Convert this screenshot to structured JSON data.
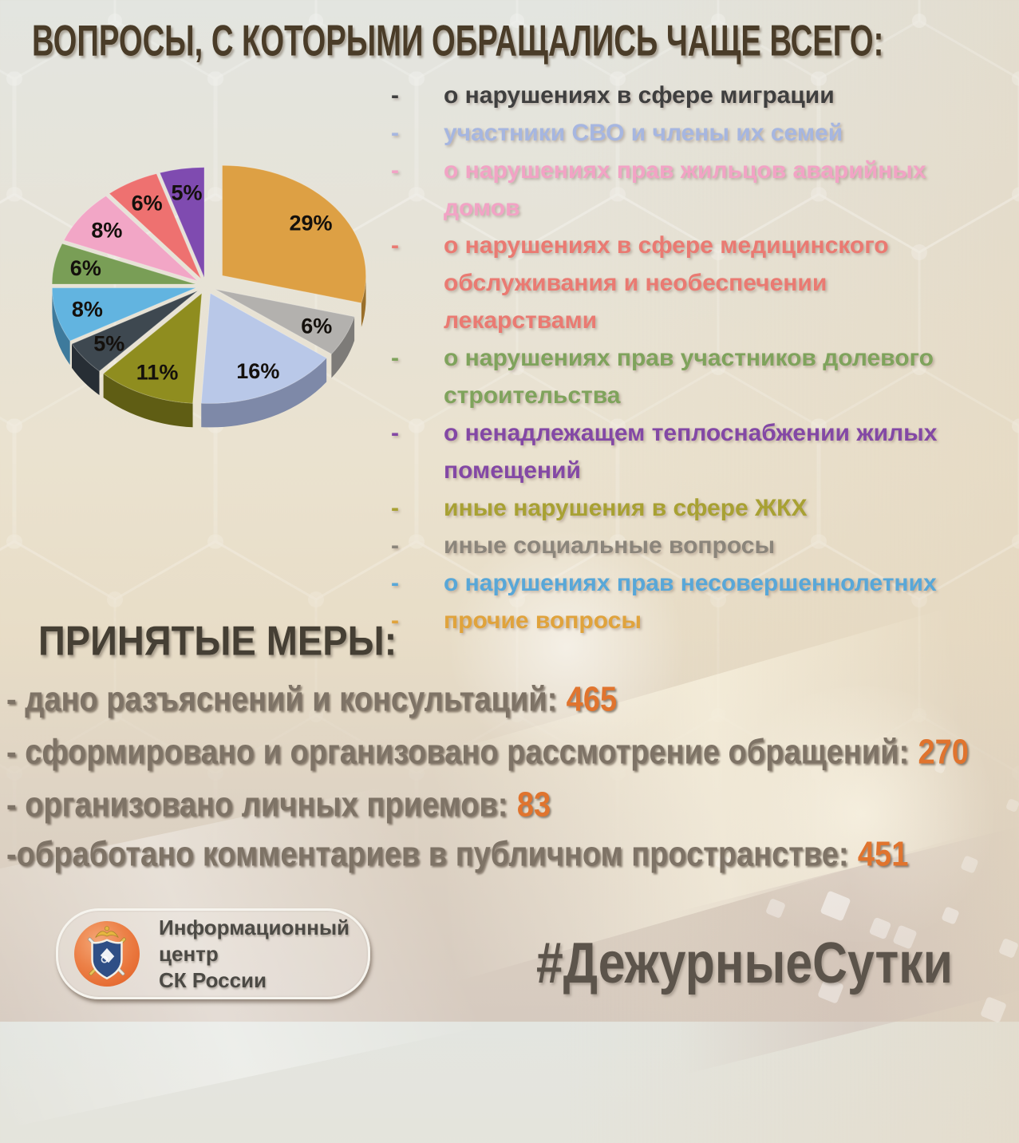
{
  "title": "ВОПРОСЫ, С КОТОРЫМИ ОБРАЩАЛИСЬ ЧАЩЕ ВСЕГО:",
  "legend": {
    "bullet": "-",
    "items": [
      {
        "label": "о нарушениях в сфере миграции",
        "color": "#3f3f3f"
      },
      {
        "label": "участники СВО и члены их семей",
        "color": "#a6b6e0"
      },
      {
        "label": "о нарушениях прав жильцов аварийных домов",
        "color": "#f2a3c5"
      },
      {
        "label": "о нарушениях в сфере медицинского обслуживания и необеспечении лекарствами",
        "color": "#ea7a72"
      },
      {
        "label": "о нарушениях прав участников долевого строительства",
        "color": "#7fa35c"
      },
      {
        "label": "о ненадлежащем теплоснабжении жилых помещений",
        "color": "#8348a5"
      },
      {
        "label": "иные нарушения в сфере ЖКХ",
        "color": "#a8a133"
      },
      {
        "label": "иные социальные вопросы",
        "color": "#8b857b"
      },
      {
        "label": "о нарушениях прав несовершеннолетних",
        "color": "#58a7d8"
      },
      {
        "label": "прочие вопросы",
        "color": "#e0a33c"
      }
    ]
  },
  "chart_data": {
    "type": "pie",
    "style": "3d-exploded",
    "unit": "percent",
    "start_angle_deg": 0,
    "direction": "clockwise",
    "slices": [
      {
        "label": "29%",
        "value": 29,
        "color": "#dda044",
        "side_color": "#9a6f2a",
        "category_by_color": "прочие вопросы"
      },
      {
        "label": "6%",
        "value": 6,
        "color": "#b3b1ae",
        "side_color": "#7d7b78",
        "category_by_color": "иные социальные вопросы"
      },
      {
        "label": "16%",
        "value": 16,
        "color": "#b9c8e8",
        "side_color": "#7e89a8",
        "category_by_color": "участники СВО и члены их семей"
      },
      {
        "label": "11%",
        "value": 11,
        "color": "#8f8d1f",
        "side_color": "#5f5d14",
        "category_by_color": "иные нарушения в сфере ЖКХ"
      },
      {
        "label": "5%",
        "value": 5,
        "color": "#3e4850",
        "side_color": "#272e35",
        "category_by_color": "о нарушениях в сфере миграции"
      },
      {
        "label": "8%",
        "value": 8,
        "color": "#62b4e0",
        "side_color": "#3e7a9c",
        "category_by_color": "о нарушениях прав несовершеннолетних"
      },
      {
        "label": "6%",
        "value": 6,
        "color": "#799e56",
        "side_color": "#50683a",
        "category_by_color": "о нарушениях прав участников долевого строительства"
      },
      {
        "label": "8%",
        "value": 8,
        "color": "#f2a6c6",
        "side_color": "#a86f88",
        "category_by_color": "о нарушениях прав жильцов аварийных домов"
      },
      {
        "label": "6%",
        "value": 6,
        "color": "#ee7170",
        "side_color": "#a34c4c",
        "category_by_color": "о нарушениях в сфере медицинского обслуживания и необеспечении лекарствами"
      },
      {
        "label": "5%",
        "value": 5,
        "color": "#7f4bb0",
        "side_color": "#55357c",
        "category_by_color": "о ненадлежащем теплоснабжении жилых помещений"
      }
    ]
  },
  "measures": {
    "heading": "ПРИНЯТЫЕ МЕРЫ:",
    "value_color": "#e0742e",
    "items": [
      {
        "label": "- дано разъяснений и консультаций:",
        "value": "465"
      },
      {
        "label": "- сформировано и организовано рассмотрение обращений:",
        "value": "270"
      },
      {
        "label": "- организовано личных приемов:",
        "value": "83"
      },
      {
        "label": "-обработано комментариев в публичном пространстве:",
        "value": "451"
      }
    ]
  },
  "footer": {
    "logo_line1": "Информационный центр",
    "logo_line2": "СК России",
    "hashtag": "#ДежурныеСутки"
  }
}
